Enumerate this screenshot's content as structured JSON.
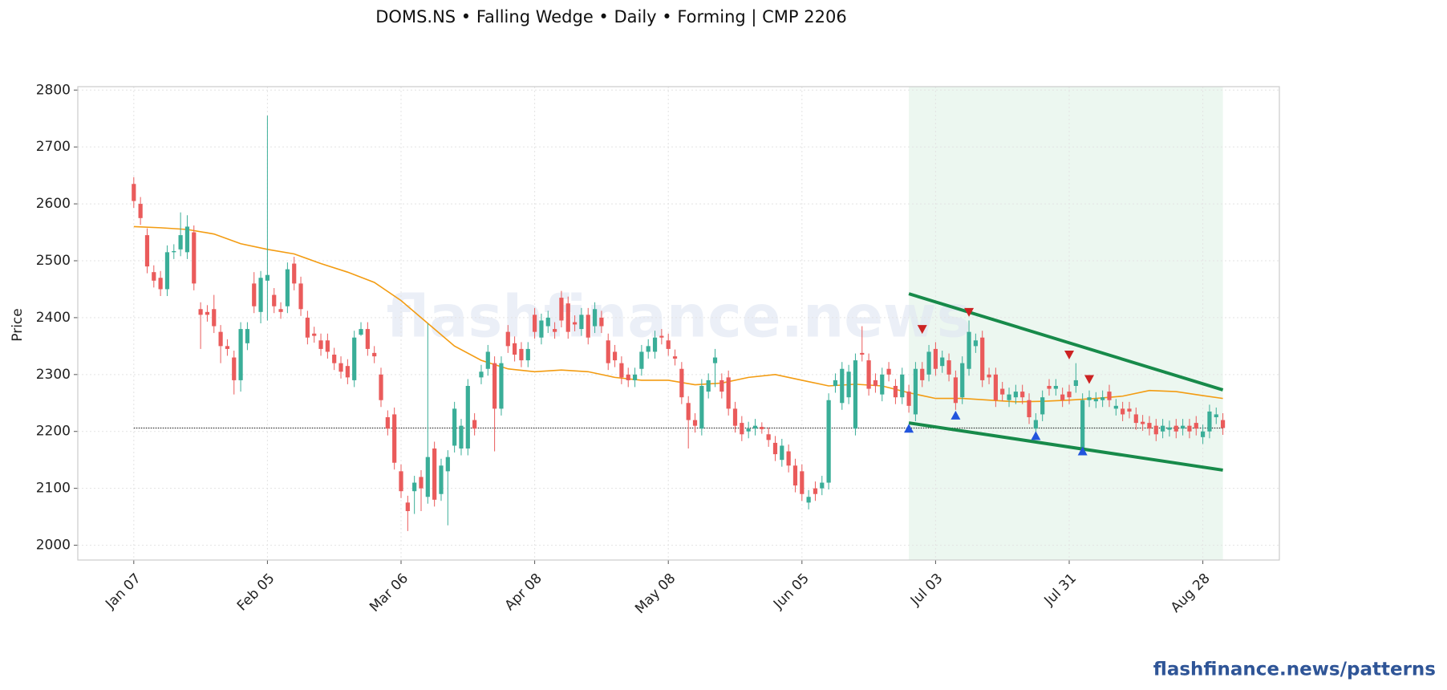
{
  "chart_data": {
    "type": "candlestick",
    "title": "DOMS.NS  •  Falling Wedge  •  Daily  •  Forming  |  CMP 2206",
    "ylabel": "Price",
    "watermark": "flashfinance.news",
    "footer": "flashfinance.news/patterns",
    "up_color": "#3aae98",
    "down_color": "#ea5b5b",
    "ylim": [
      1974,
      2806
    ],
    "yticks": [
      2000,
      2100,
      2200,
      2300,
      2400,
      2500,
      2600,
      2700,
      2800
    ],
    "grid": true,
    "categories": [
      "Jan 07",
      null,
      null,
      null,
      null,
      null,
      null,
      null,
      null,
      null,
      null,
      null,
      null,
      null,
      null,
      null,
      null,
      null,
      null,
      null,
      "Feb 05",
      null,
      null,
      null,
      null,
      null,
      null,
      null,
      null,
      null,
      null,
      null,
      null,
      null,
      null,
      null,
      null,
      null,
      null,
      null,
      "Mar 06",
      null,
      null,
      null,
      null,
      null,
      null,
      null,
      null,
      null,
      null,
      null,
      null,
      null,
      null,
      null,
      null,
      null,
      null,
      null,
      "Apr 08",
      null,
      null,
      null,
      null,
      null,
      null,
      null,
      null,
      null,
      null,
      null,
      null,
      null,
      null,
      null,
      null,
      null,
      null,
      null,
      "May 08",
      null,
      null,
      null,
      null,
      null,
      null,
      null,
      null,
      null,
      null,
      null,
      null,
      null,
      null,
      null,
      null,
      null,
      null,
      null,
      "Jun 05",
      null,
      null,
      null,
      null,
      null,
      null,
      null,
      null,
      null,
      null,
      null,
      null,
      null,
      null,
      null,
      null,
      null,
      null,
      null,
      "Jul 03",
      null,
      null,
      null,
      null,
      null,
      null,
      null,
      null,
      null,
      null,
      null,
      null,
      null,
      null,
      null,
      null,
      null,
      null,
      null,
      "Jul 31",
      null,
      null,
      null,
      null,
      null,
      null,
      null,
      null,
      null,
      null,
      null,
      null,
      null,
      null,
      null,
      null,
      null,
      null,
      null,
      "Aug 28",
      null,
      null,
      null
    ],
    "open": [
      2635,
      2600,
      2545,
      2480,
      2470,
      2450,
      2515,
      2520,
      2515,
      2550,
      2415,
      2410,
      2415,
      2375,
      2350,
      2330,
      2290,
      2355,
      2460,
      2410,
      2465,
      2440,
      2415,
      2420,
      2495,
      2460,
      2400,
      2372,
      2360,
      2360,
      2335,
      2320,
      2315,
      2290,
      2370,
      2380,
      2338,
      2300,
      2225,
      2230,
      2130,
      2075,
      2095,
      2120,
      2085,
      2170,
      2090,
      2130,
      2175,
      2170,
      2170,
      2220,
      2295,
      2310,
      2320,
      2240,
      2375,
      2355,
      2345,
      2325,
      2405,
      2365,
      2385,
      2380,
      2435,
      2425,
      2392,
      2380,
      2405,
      2385,
      2400,
      2360,
      2340,
      2320,
      2300,
      2290,
      2310,
      2340,
      2340,
      2368,
      2360,
      2332,
      2310,
      2250,
      2220,
      2205,
      2270,
      2320,
      2290,
      2295,
      2240,
      2215,
      2200,
      2205,
      2208,
      2195,
      2180,
      2150,
      2165,
      2140,
      2130,
      2075,
      2100,
      2100,
      2110,
      2280,
      2250,
      2260,
      2205,
      2338,
      2325,
      2290,
      2265,
      2310,
      2280,
      2260,
      2270,
      2230,
      2310,
      2300,
      2345,
      2315,
      2325,
      2295,
      2260,
      2310,
      2350,
      2365,
      2300,
      2300,
      2275,
      2255,
      2260,
      2270,
      2255,
      2205,
      2230,
      2280,
      2275,
      2265,
      2270,
      2280,
      2170,
      2255,
      2253,
      2255,
      2270,
      2240,
      2240,
      2240,
      2230,
      2217,
      2215,
      2210,
      2200,
      2203,
      2210,
      2205,
      2210,
      2215,
      2190,
      2200,
      2225,
      2220
    ],
    "high": [
      2647,
      2612,
      2557,
      2492,
      2482,
      2527,
      2529,
      2585,
      2580,
      2562,
      2427,
      2422,
      2440,
      2387,
      2362,
      2342,
      2392,
      2392,
      2480,
      2482,
      2755,
      2452,
      2427,
      2497,
      2507,
      2472,
      2412,
      2384,
      2372,
      2372,
      2347,
      2332,
      2327,
      2377,
      2392,
      2392,
      2350,
      2312,
      2237,
      2242,
      2142,
      2087,
      2122,
      2132,
      2390,
      2182,
      2152,
      2167,
      2252,
      2222,
      2292,
      2232,
      2317,
      2352,
      2332,
      2332,
      2387,
      2367,
      2357,
      2357,
      2417,
      2407,
      2412,
      2392,
      2447,
      2437,
      2404,
      2417,
      2417,
      2427,
      2412,
      2372,
      2352,
      2332,
      2312,
      2312,
      2352,
      2362,
      2377,
      2380,
      2372,
      2344,
      2322,
      2262,
      2232,
      2292,
      2302,
      2345,
      2302,
      2307,
      2252,
      2227,
      2217,
      2222,
      2216,
      2207,
      2192,
      2187,
      2177,
      2152,
      2142,
      2097,
      2112,
      2122,
      2267,
      2302,
      2322,
      2317,
      2337,
      2385,
      2337,
      2302,
      2312,
      2322,
      2292,
      2312,
      2282,
      2322,
      2322,
      2352,
      2357,
      2342,
      2337,
      2307,
      2332,
      2395,
      2372,
      2377,
      2312,
      2312,
      2287,
      2277,
      2282,
      2282,
      2267,
      2232,
      2272,
      2292,
      2292,
      2277,
      2282,
      2320,
      2267,
      2272,
      2269,
      2272,
      2282,
      2257,
      2252,
      2252,
      2242,
      2229,
      2227,
      2222,
      2222,
      2219,
      2222,
      2222,
      2222,
      2227,
      2212,
      2247,
      2242,
      2232
    ],
    "low": [
      2593,
      2563,
      2478,
      2453,
      2438,
      2438,
      2503,
      2508,
      2503,
      2448,
      2345,
      2393,
      2373,
      2320,
      2333,
      2265,
      2270,
      2343,
      2408,
      2390,
      2395,
      2408,
      2398,
      2408,
      2448,
      2403,
      2353,
      2356,
      2333,
      2328,
      2308,
      2293,
      2283,
      2278,
      2368,
      2333,
      2320,
      2243,
      2193,
      2133,
      2083,
      2025,
      2055,
      2060,
      2073,
      2068,
      2078,
      2035,
      2163,
      2158,
      2158,
      2193,
      2283,
      2298,
      2165,
      2228,
      2338,
      2323,
      2313,
      2313,
      2363,
      2353,
      2373,
      2363,
      2383,
      2363,
      2376,
      2368,
      2353,
      2373,
      2373,
      2308,
      2313,
      2283,
      2278,
      2278,
      2298,
      2328,
      2328,
      2353,
      2333,
      2316,
      2248,
      2170,
      2198,
      2193,
      2258,
      2278,
      2258,
      2228,
      2198,
      2183,
      2188,
      2193,
      2196,
      2173,
      2148,
      2138,
      2128,
      2093,
      2078,
      2063,
      2078,
      2088,
      2098,
      2268,
      2238,
      2248,
      2193,
      2323,
      2263,
      2268,
      2253,
      2288,
      2248,
      2248,
      2233,
      2218,
      2278,
      2288,
      2298,
      2303,
      2288,
      2238,
      2248,
      2298,
      2338,
      2278,
      2283,
      2243,
      2253,
      2243,
      2248,
      2248,
      2213,
      2193,
      2218,
      2263,
      2263,
      2243,
      2248,
      2268,
      2165,
      2243,
      2241,
      2243,
      2243,
      2228,
      2218,
      2223,
      2203,
      2201,
      2193,
      2183,
      2188,
      2191,
      2188,
      2193,
      2188,
      2193,
      2178,
      2188,
      2213,
      2194
    ],
    "close": [
      2605,
      2575,
      2490,
      2465,
      2450,
      2515,
      2517,
      2545,
      2560,
      2460,
      2405,
      2405,
      2385,
      2350,
      2345,
      2290,
      2380,
      2380,
      2420,
      2470,
      2475,
      2420,
      2410,
      2485,
      2460,
      2415,
      2365,
      2368,
      2345,
      2340,
      2320,
      2305,
      2295,
      2365,
      2380,
      2345,
      2332,
      2255,
      2205,
      2145,
      2095,
      2060,
      2110,
      2100,
      2155,
      2080,
      2140,
      2155,
      2240,
      2210,
      2280,
      2205,
      2305,
      2340,
      2240,
      2320,
      2350,
      2335,
      2325,
      2345,
      2375,
      2395,
      2400,
      2375,
      2395,
      2375,
      2388,
      2405,
      2365,
      2415,
      2385,
      2320,
      2325,
      2295,
      2290,
      2300,
      2340,
      2350,
      2365,
      2365,
      2345,
      2328,
      2260,
      2220,
      2210,
      2280,
      2290,
      2330,
      2270,
      2240,
      2210,
      2195,
      2205,
      2210,
      2204,
      2185,
      2160,
      2175,
      2140,
      2105,
      2090,
      2085,
      2090,
      2110,
      2255,
      2290,
      2310,
      2305,
      2325,
      2335,
      2275,
      2280,
      2300,
      2300,
      2260,
      2300,
      2245,
      2310,
      2290,
      2340,
      2310,
      2330,
      2300,
      2250,
      2320,
      2375,
      2360,
      2290,
      2295,
      2255,
      2265,
      2265,
      2270,
      2260,
      2225,
      2220,
      2260,
      2275,
      2280,
      2255,
      2260,
      2290,
      2255,
      2260,
      2257,
      2260,
      2255,
      2245,
      2230,
      2235,
      2215,
      2213,
      2205,
      2195,
      2210,
      2207,
      2200,
      2210,
      2200,
      2205,
      2200,
      2235,
      2230,
      2206
    ],
    "sma": {
      "color": "#f39c12",
      "x": [
        0,
        4,
        8,
        12,
        16,
        20,
        24,
        28,
        32,
        36,
        40,
        44,
        48,
        52,
        56,
        60,
        64,
        68,
        72,
        76,
        80,
        84,
        88,
        92,
        96,
        100,
        104,
        108,
        112,
        116,
        120,
        124,
        128,
        132,
        136,
        140,
        144,
        148,
        152,
        156,
        160,
        163
      ],
      "values": [
        2560,
        2558,
        2555,
        2547,
        2530,
        2520,
        2512,
        2495,
        2480,
        2462,
        2430,
        2390,
        2350,
        2325,
        2310,
        2305,
        2308,
        2305,
        2295,
        2290,
        2290,
        2282,
        2285,
        2295,
        2300,
        2290,
        2280,
        2283,
        2280,
        2268,
        2258,
        2258,
        2255,
        2252,
        2253,
        2255,
        2258,
        2262,
        2272,
        2270,
        2263,
        2258
      ]
    },
    "cmp_line": {
      "value": 2206,
      "x": [
        0,
        163
      ],
      "color": "#333333"
    },
    "pattern_zone": {
      "x": [
        116,
        163
      ],
      "color": "#e4f3ea"
    },
    "wedge": {
      "color": "#178a4a",
      "upper": {
        "x": [
          116,
          163
        ],
        "y": [
          2442,
          2273
        ]
      },
      "lower": {
        "x": [
          116,
          163
        ],
        "y": [
          2215,
          2132
        ]
      }
    },
    "pivot_highs": {
      "color": "#cc2222",
      "x": [
        118,
        125,
        140,
        143
      ],
      "y": [
        2380,
        2410,
        2335,
        2292
      ]
    },
    "pivot_lows": {
      "color": "#2255dd",
      "x": [
        116,
        123,
        135,
        142
      ],
      "y": [
        2205,
        2228,
        2192,
        2165
      ]
    }
  }
}
